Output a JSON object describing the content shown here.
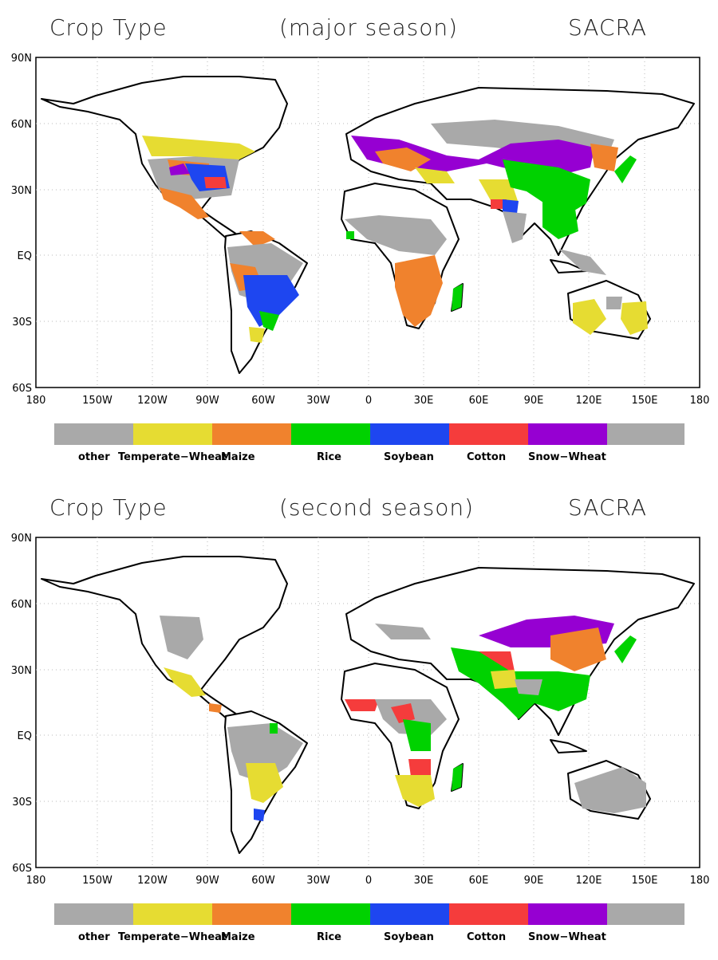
{
  "colors": {
    "other": "#a9a9a9",
    "temperate_wheat": "#e6dc32",
    "maize": "#f0822d",
    "rice": "#00d200",
    "soybean": "#1e46f0",
    "cotton": "#f53c3c",
    "snow_wheat": "#9600d2",
    "land_outline": "#000000",
    "gridline": "#b4b4b4"
  },
  "axes": {
    "lat_ticks": [
      "90N",
      "60N",
      "30N",
      "EQ",
      "30S",
      "60S"
    ],
    "lon_ticks": [
      "180",
      "150W",
      "120W",
      "90W",
      "60W",
      "30W",
      "0",
      "30E",
      "60E",
      "90E",
      "120E",
      "150E",
      "180"
    ]
  },
  "legend": {
    "labels": [
      "other",
      "Temperate−Wheat",
      "Maize",
      "Rice",
      "Soybean",
      "Cotton",
      "Snow−Wheat"
    ]
  },
  "panels": [
    {
      "title_left": "Crop Type",
      "title_center": "(major season)",
      "title_right": "SACRA"
    },
    {
      "title_left": "Crop Type",
      "title_center": "(second season)",
      "title_right": "SACRA"
    }
  ]
}
